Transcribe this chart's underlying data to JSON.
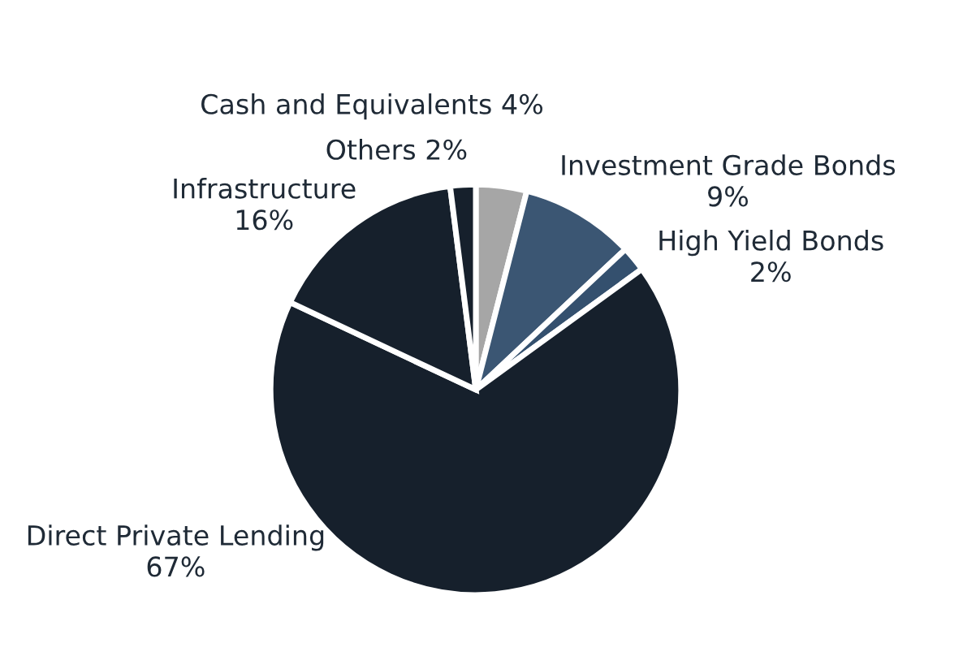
{
  "chart_data": {
    "type": "pie",
    "categories": [
      "Cash and Equivalents",
      "Investment Grade Bonds",
      "High Yield Bonds",
      "Direct Private Lending",
      "Infrastructure",
      "Others"
    ],
    "values": [
      4,
      9,
      2,
      67,
      16,
      2
    ],
    "value_labels": [
      "4%",
      "9%",
      "2%",
      "67%",
      "16%",
      "2%"
    ],
    "colors": [
      "#a6a6a6",
      "#3b5673",
      "#34506e",
      "#16202c",
      "#16202c",
      "#16202c"
    ]
  }
}
